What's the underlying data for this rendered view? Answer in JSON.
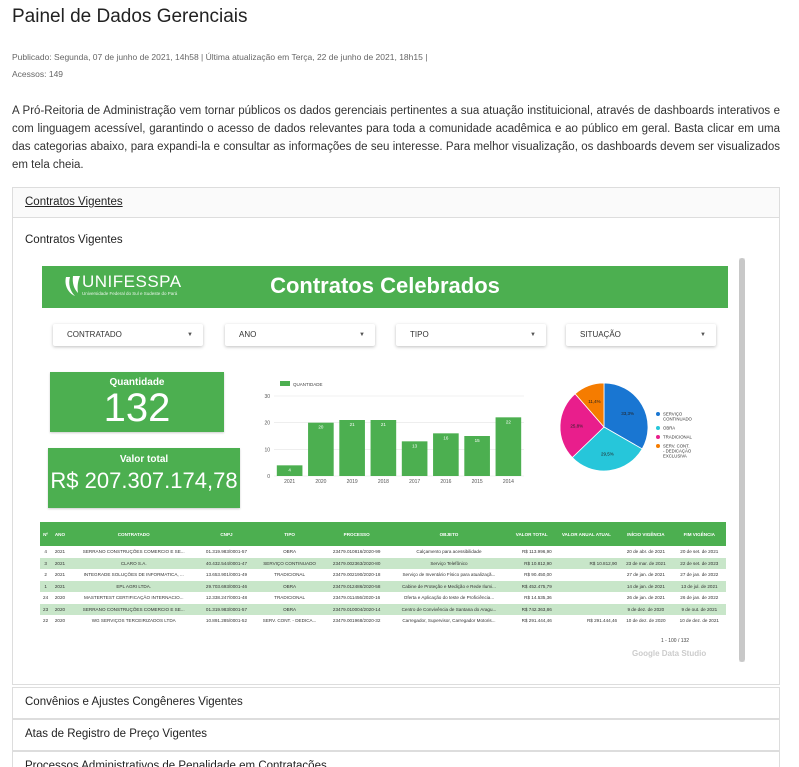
{
  "page": {
    "title": "Painel de Dados Gerenciais",
    "meta_line1": "Publicado: Segunda, 07 de junho de 2021, 14h58 | Última atualização em Terça, 22 de junho de 2021, 18h15 |",
    "meta_line2": "Acessos: 149",
    "intro": "A Pró-Reitoria de Administração vem tornar públicos os dados gerenciais pertinentes a sua atuação instituicional, através de dashboards interativos e com linguagem acessível, garantindo o acesso de dados relevantes para toda a comunidade acadêmica e ao público em geral. Basta clicar em uma das categorias abaixo, para expandi-la e consultar as informações de seu interesse. Para melhor visualização, os dashboards devem ser visualizados em tela cheia."
  },
  "accordion": {
    "open_title": "Contratos Vigentes",
    "open_label": "Contratos Vigentes",
    "others": [
      "Convênios e Ajustes Congêneres Vigentes",
      "Atas de Registro de Preço Vigentes",
      "Processos Administrativos de Penalidade em Contratações"
    ]
  },
  "dashboard": {
    "brand": "UNIFESSPA",
    "tagline": "Universidade Federal do Sul e Sudeste do Pará",
    "title": "Contratos Celebrados",
    "filters": [
      "CONTRATADO",
      "ANO",
      "TIPO",
      "SITUAÇÃO"
    ],
    "kpi_qty_label": "Quantidade",
    "kpi_qty_value": "132",
    "kpi_val_label": "Valor total",
    "kpi_val_value": "R$ 207.307.174,78",
    "watermark": "Google Data Studio",
    "pager": "1 - 100 / 132",
    "colors": {
      "green": "#4caf50",
      "light_green": "#c8e6c9"
    }
  },
  "chart_data": [
    {
      "type": "bar",
      "legend": [
        "QUANTIDADE"
      ],
      "categories": [
        "2021",
        "2020",
        "2019",
        "2018",
        "2017",
        "2016",
        "2015",
        "2014"
      ],
      "series": [
        {
          "name": "QUANTIDADE",
          "values": [
            4,
            20,
            21,
            21,
            13,
            16,
            15,
            22
          ]
        }
      ],
      "yticks": [
        "30",
        "20",
        "10",
        "0"
      ],
      "ylim": [
        0,
        30
      ],
      "grid": true,
      "color": "#4caf50"
    },
    {
      "type": "pie",
      "labels": [
        "SERVIÇO CONTINUADO",
        "OBRA",
        "TRADICIONAL",
        "SERV. CONT. - DEDICAÇÃO EXCLUSIVA"
      ],
      "values": [
        33.3,
        29.5,
        25.8,
        11.4
      ],
      "value_labels": [
        "33,3%",
        "29,5%",
        "25,8%",
        "11,4%"
      ],
      "colors": [
        "#1976d2",
        "#26c6da",
        "#e91e8c",
        "#f57c00"
      ],
      "legend_position": "right"
    }
  ],
  "table": {
    "headers": [
      "Nº",
      "ANO",
      "CONTRATADO",
      "CNPJ",
      "TIPO",
      "PROCESSO",
      "OBJETO",
      "VALOR TOTAL",
      "VALOR ANUAL ATUAL",
      "INÍCIO VIGÊNCIA",
      "FIM VIGÊNCIA"
    ],
    "rows": [
      [
        "4",
        "2021",
        "SERRANO CONSTRUÇÕES COMERCIO E SE...",
        "01.319.983/0001-57",
        "OBRA",
        "23479.010816/2020-99",
        "Calçamento para acessibilidade",
        "R$ 113.996,90",
        "",
        "20 de abr. de 2021",
        "20 de set. de 2021"
      ],
      [
        "3",
        "2021",
        "CLARO S.A.",
        "40.432.544/0001-47",
        "SERVIÇO CONTINUADO",
        "23479.002363/2020-80",
        "Serviço Telefônico",
        "R$ 10.812,90",
        "R$ 10.812,90",
        "23 de mar. de 2021",
        "22 de set. de 2023"
      ],
      [
        "2",
        "2021",
        "INTEGRADE SOLUÇÕES DE INFORMATICA, ...",
        "13.653.901/0001-49",
        "TRADICIONAL",
        "23479.002190/2020-18",
        "Serviço de Inventário Físico para atualizaçã...",
        "R$ 90.450,00",
        "",
        "27 de jan. de 2021",
        "27 de jan. de 2022"
      ],
      [
        "1",
        "2021",
        "EPL AGRI LTDA.",
        "29.703.693/0001-46",
        "OBRA",
        "23479.012486/2020-58",
        "Cabine de Proteção e Medição e Rede Ilumi...",
        "R$ 452.475,79",
        "",
        "14 de jan. de 2021",
        "13 de jul. de 2021"
      ],
      [
        "24",
        "2020",
        "MASTERTEST CERTIFICAÇÃO INTERNACIO...",
        "12.338.247/0001-48",
        "TRADICIONAL",
        "23479.011456/2020-16",
        "Oferta e Aplicação do teste de Proficiência...",
        "R$ 14.535,36",
        "",
        "26 de jan. de 2021",
        "26 de jan. de 2022"
      ],
      [
        "23",
        "2020",
        "SERRANO CONSTRUÇÕES COMERCIO E SE...",
        "01.319.983/0001-57",
        "OBRA",
        "23479.010004/2020-14",
        "Centro de Convivência de Santana do Aragu...",
        "R$ 742.363,86",
        "",
        "9 de dez. de 2020",
        "9 de out. de 2021"
      ],
      [
        "22",
        "2020",
        "WG SERVIÇOS TERCEIRIZADOS LTDA",
        "10.891.285/0001-52",
        "SERV. CONT. - DEDICA...",
        "23479.001968/2020-32",
        "Carregador, Supervisor, Carregador Motoris...",
        "R$ 291.444,46",
        "R$ 291.444,46",
        "10 de dez. de 2020",
        "10 de dez. de 2021"
      ]
    ]
  }
}
